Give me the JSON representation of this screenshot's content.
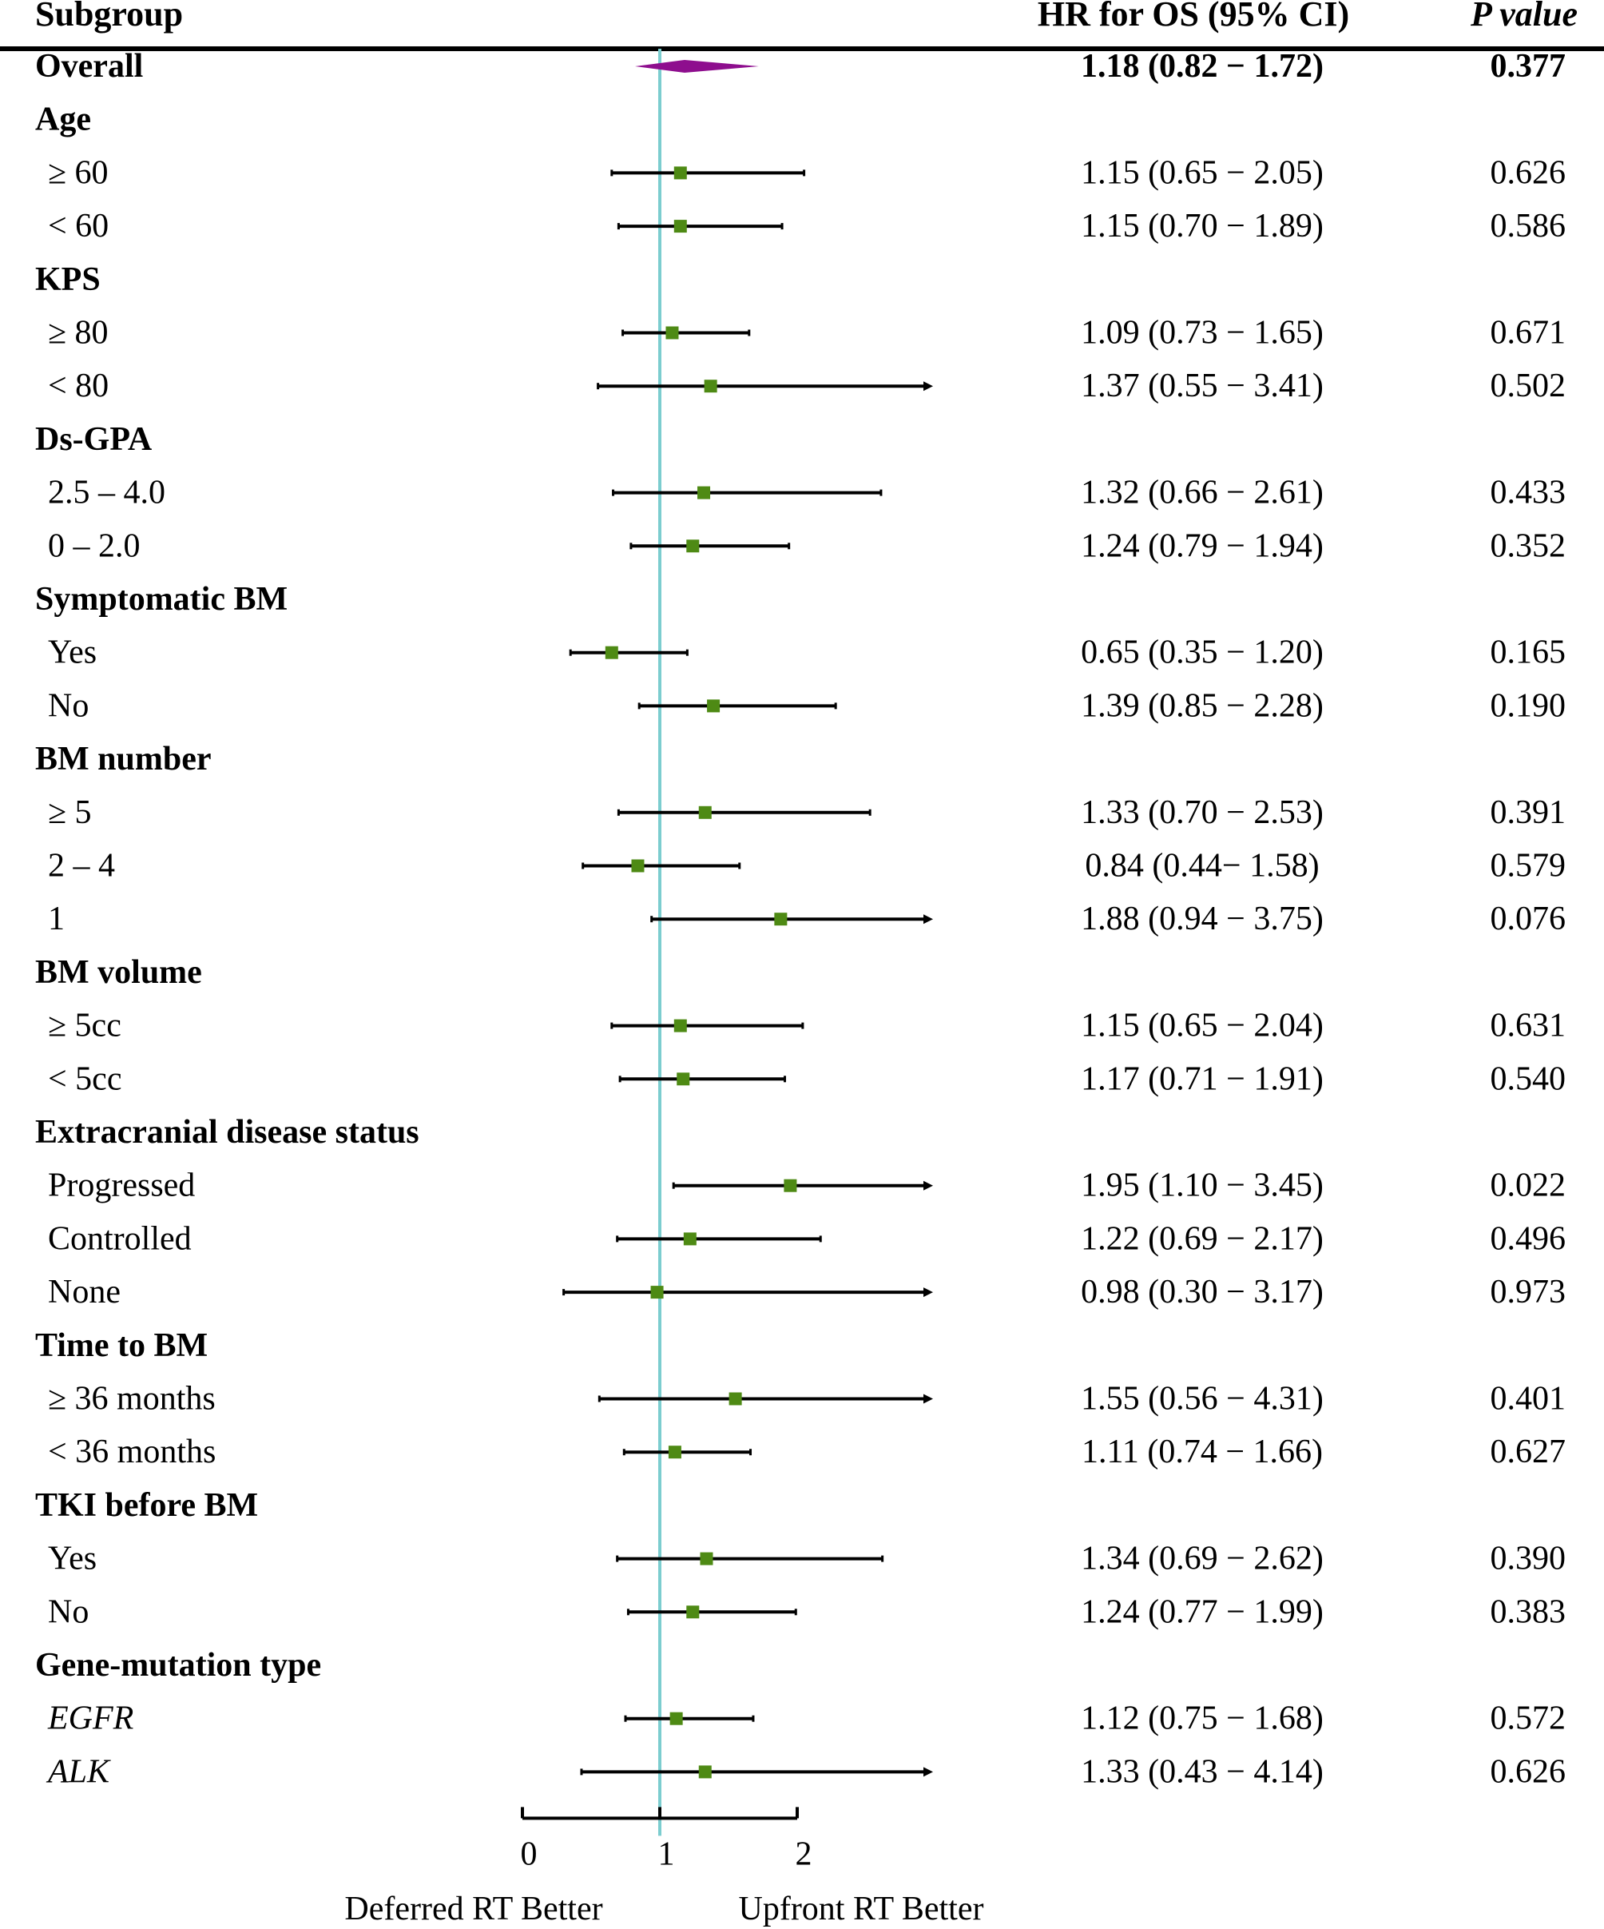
{
  "header": {
    "subgroup": "Subgroup",
    "hr": "HR for OS (95% CI)",
    "p": "P value"
  },
  "chart_data": {
    "type": "forest",
    "x_ticks": [
      0,
      1,
      2
    ],
    "xlim": [
      0,
      2.95
    ],
    "reference_line": 1,
    "left_label": "Deferred RT Better",
    "right_label": "Upfront RT Better",
    "colors": {
      "point": "#4e8a14",
      "diamond": "#8e0e8e",
      "ref": "#7ccdcf"
    },
    "rows": [
      {
        "label": "Overall",
        "type": "overall",
        "hr": 1.18,
        "lo": 0.82,
        "hi": 1.72,
        "hr_text": "1.18 (0.82 − 1.72)",
        "p": "0.377"
      },
      {
        "label": "Age",
        "type": "group"
      },
      {
        "label": "≥ 60",
        "type": "item",
        "hr": 1.15,
        "lo": 0.65,
        "hi": 2.05,
        "hr_text": "1.15 (0.65 − 2.05)",
        "p": "0.626"
      },
      {
        "label": "< 60",
        "type": "item",
        "hr": 1.15,
        "lo": 0.7,
        "hi": 1.89,
        "hr_text": "1.15 (0.70 − 1.89)",
        "p": "0.586"
      },
      {
        "label": "KPS",
        "type": "group"
      },
      {
        "label": "≥ 80",
        "type": "item",
        "hr": 1.09,
        "lo": 0.73,
        "hi": 1.65,
        "hr_text": "1.09 (0.73 − 1.65)",
        "p": "0.671"
      },
      {
        "label": "< 80",
        "type": "item",
        "hr": 1.37,
        "lo": 0.55,
        "hi": 3.41,
        "hr_text": "1.37 (0.55 − 3.41)",
        "p": "0.502"
      },
      {
        "label": "Ds-GPA",
        "type": "group"
      },
      {
        "label": "2.5 – 4.0",
        "type": "item",
        "hr": 1.32,
        "lo": 0.66,
        "hi": 2.61,
        "hr_text": "1.32 (0.66 − 2.61)",
        "p": "0.433"
      },
      {
        "label": "0 – 2.0",
        "type": "item",
        "hr": 1.24,
        "lo": 0.79,
        "hi": 1.94,
        "hr_text": "1.24 (0.79 − 1.94)",
        "p": "0.352"
      },
      {
        "label": "Symptomatic BM",
        "type": "group"
      },
      {
        "label": "Yes",
        "type": "item",
        "hr": 0.65,
        "lo": 0.35,
        "hi": 1.2,
        "hr_text": "0.65 (0.35 − 1.20)",
        "p": "0.165"
      },
      {
        "label": "No",
        "type": "item",
        "hr": 1.39,
        "lo": 0.85,
        "hi": 2.28,
        "hr_text": "1.39 (0.85 − 2.28)",
        "p": "0.190"
      },
      {
        "label": "BM number",
        "type": "group"
      },
      {
        "label": "≥ 5",
        "type": "item",
        "hr": 1.33,
        "lo": 0.7,
        "hi": 2.53,
        "hr_text": "1.33 (0.70 − 2.53)",
        "p": "0.391"
      },
      {
        "label": "2 – 4",
        "type": "item",
        "hr": 0.84,
        "lo": 0.44,
        "hi": 1.58,
        "hr_text": "0.84 (0.44− 1.58)",
        "p": "0.579"
      },
      {
        "label": "1",
        "type": "item",
        "hr": 1.88,
        "lo": 0.94,
        "hi": 3.75,
        "hr_text": "1.88 (0.94 − 3.75)",
        "p": "0.076"
      },
      {
        "label": "BM volume",
        "type": "group"
      },
      {
        "label": "≥ 5cc",
        "type": "item",
        "hr": 1.15,
        "lo": 0.65,
        "hi": 2.04,
        "hr_text": "1.15 (0.65 − 2.04)",
        "p": "0.631"
      },
      {
        "label": "< 5cc",
        "type": "item",
        "hr": 1.17,
        "lo": 0.71,
        "hi": 1.91,
        "hr_text": "1.17 (0.71 − 1.91)",
        "p": "0.540"
      },
      {
        "label": "Extracranial disease status",
        "type": "group"
      },
      {
        "label": "Progressed",
        "type": "item",
        "hr": 1.95,
        "lo": 1.1,
        "hi": 3.45,
        "hr_text": "1.95 (1.10 − 3.45)",
        "p": "0.022"
      },
      {
        "label": "Controlled",
        "type": "item",
        "hr": 1.22,
        "lo": 0.69,
        "hi": 2.17,
        "hr_text": "1.22 (0.69 − 2.17)",
        "p": "0.496"
      },
      {
        "label": "None",
        "type": "item",
        "hr": 0.98,
        "lo": 0.3,
        "hi": 3.17,
        "hr_text": "0.98 (0.30 − 3.17)",
        "p": "0.973"
      },
      {
        "label": "Time to BM",
        "type": "group"
      },
      {
        "label": "≥ 36 months",
        "type": "item",
        "hr": 1.55,
        "lo": 0.56,
        "hi": 4.31,
        "hr_text": "1.55 (0.56 − 4.31)",
        "p": "0.401"
      },
      {
        "label": "< 36 months",
        "type": "item",
        "hr": 1.11,
        "lo": 0.74,
        "hi": 1.66,
        "hr_text": "1.11 (0.74 − 1.66)",
        "p": "0.627"
      },
      {
        "label": "TKI before BM",
        "type": "group"
      },
      {
        "label": "Yes",
        "type": "item",
        "hr": 1.34,
        "lo": 0.69,
        "hi": 2.62,
        "hr_text": "1.34 (0.69 − 2.62)",
        "p": "0.390"
      },
      {
        "label": "No",
        "type": "item",
        "hr": 1.24,
        "lo": 0.77,
        "hi": 1.99,
        "hr_text": "1.24 (0.77 − 1.99)",
        "p": "0.383"
      },
      {
        "label": "Gene-mutation type",
        "type": "group"
      },
      {
        "label": "EGFR",
        "type": "item",
        "italic": true,
        "hr": 1.12,
        "lo": 0.75,
        "hi": 1.68,
        "hr_text": "1.12 (0.75 − 1.68)",
        "p": "0.572"
      },
      {
        "label": "ALK",
        "type": "item",
        "italic": true,
        "hr": 1.33,
        "lo": 0.43,
        "hi": 4.14,
        "hr_text": "1.33 (0.43 − 4.14)",
        "p": "0.626"
      }
    ]
  }
}
